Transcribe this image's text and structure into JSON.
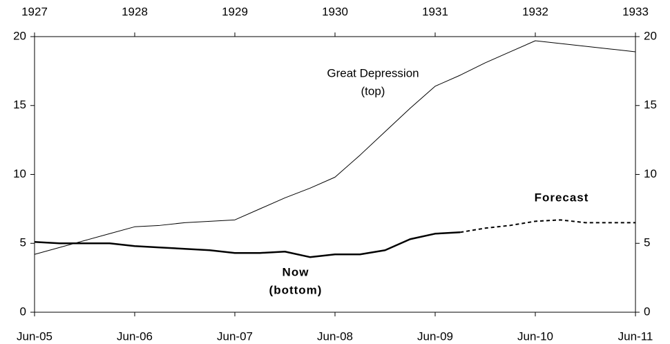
{
  "chart_data": {
    "type": "line",
    "categories": [
      "Jun-05",
      null,
      null,
      null,
      "Jun-06",
      null,
      null,
      null,
      "Jun-07",
      null,
      null,
      null,
      "Jun-08",
      null,
      null,
      null,
      "Jun-09",
      null,
      null,
      null,
      "Jun-10",
      null,
      null,
      null,
      "Jun-11"
    ],
    "top_categories": [
      "1927",
      null,
      null,
      null,
      "1928",
      null,
      null,
      null,
      "1929",
      null,
      null,
      null,
      "1930",
      null,
      null,
      null,
      "1931",
      null,
      null,
      null,
      "1932",
      null,
      null,
      null,
      "1933"
    ],
    "series": [
      {
        "label": [
          "Great Depression",
          "(top)"
        ],
        "color": "#000000",
        "width": 1,
        "dashed": false,
        "bold": false,
        "values": [
          4.2,
          4.7,
          5.2,
          5.7,
          6.2,
          6.3,
          6.5,
          6.6,
          6.7,
          7.5,
          8.3,
          9.0,
          9.8,
          11.4,
          13.1,
          14.8,
          16.4,
          17.2,
          18.1,
          18.9,
          19.7,
          19.5,
          19.3,
          19.1,
          18.9
        ]
      },
      {
        "label": [
          "Now",
          "(bottom)"
        ],
        "color": "#000000",
        "width": 2.5,
        "dashed": false,
        "bold": true,
        "values": [
          5.1,
          5.0,
          5.0,
          5.0,
          4.8,
          4.7,
          4.6,
          4.5,
          4.3,
          4.3,
          4.4,
          4.0,
          4.2,
          4.2,
          4.5,
          5.3,
          5.7,
          5.8,
          null,
          null,
          null,
          null,
          null,
          null,
          null
        ]
      },
      {
        "label": [
          "Forecast"
        ],
        "color": "#000000",
        "width": 2,
        "dashed": true,
        "bold": true,
        "values": [
          null,
          null,
          null,
          null,
          null,
          null,
          null,
          null,
          null,
          null,
          null,
          null,
          null,
          null,
          null,
          null,
          null,
          5.8,
          6.1,
          6.3,
          6.6,
          6.7,
          6.5,
          6.5,
          6.5
        ]
      }
    ],
    "ylim": [
      0,
      20
    ],
    "yticks": [
      0,
      5,
      10,
      15,
      20
    ],
    "y2lim": [
      0,
      20
    ],
    "y2ticks": [
      0,
      5,
      10,
      15,
      20
    ]
  }
}
